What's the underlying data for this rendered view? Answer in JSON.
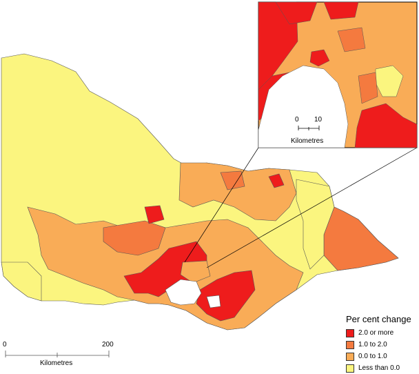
{
  "legend": {
    "title": "Per cent change",
    "items": [
      {
        "label": "2.0 or more",
        "color": "#ee1c1c"
      },
      {
        "label": "1.0 to 2.0",
        "color": "#f47a3f"
      },
      {
        "label": "0.0 to 1.0",
        "color": "#f9ac57"
      },
      {
        "label": "Less than 0.0",
        "color": "#fbf57f"
      }
    ]
  },
  "main_scale": {
    "start": "0",
    "end": "200",
    "unit": "Kilometres"
  },
  "inset_scale": {
    "start": "0",
    "end": "10",
    "unit": "Kilometres"
  },
  "colors": {
    "outline": "#555555",
    "water": "#ffffff",
    "frame": "#000000"
  }
}
